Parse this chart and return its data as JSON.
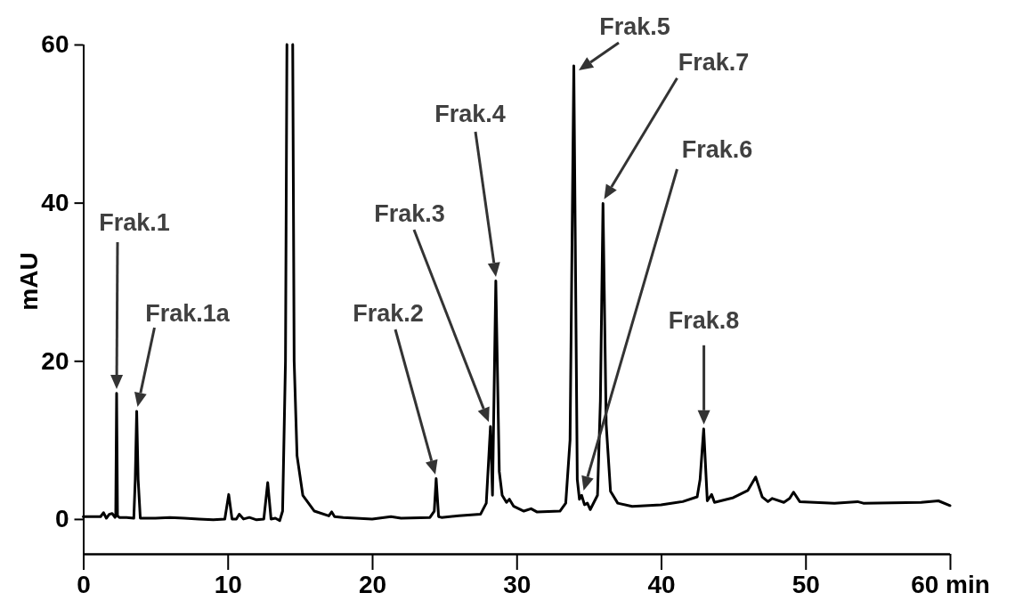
{
  "chart_data": {
    "type": "line",
    "xlabel": null,
    "ylabel": "mAU",
    "xlim": [
      0,
      60
    ],
    "ylim": [
      -4.4,
      60
    ],
    "xticks": [
      0,
      10,
      20,
      30,
      40,
      50,
      {
        "value": 60,
        "label": "60 min"
      }
    ],
    "yticks": [
      0,
      20,
      40,
      60
    ],
    "grid": false,
    "marker": "none",
    "line_style": "solid",
    "series": [
      {
        "color": "#000000",
        "x": [
          0,
          1.2,
          1.4,
          1.6,
          1.8,
          2.0,
          2.2,
          2.25,
          2.31,
          2.37,
          2.5,
          3.0,
          3.5,
          3.6,
          3.7,
          3.8,
          3.95,
          5,
          6,
          7,
          8,
          9,
          9.8,
          10.07,
          10.3,
          10.6,
          10.8,
          11.1,
          11.5,
          12,
          12.5,
          12.77,
          13.0,
          13.3,
          13.6,
          13.8,
          14.0,
          14.1,
          14.3,
          14.5,
          14.6,
          14.8,
          15.2,
          16,
          17,
          17.2,
          17.4,
          18,
          20,
          21.3,
          22,
          24,
          24.3,
          24.43,
          24.6,
          24.8,
          26,
          27.5,
          27.9,
          28.19,
          28.33,
          28.56,
          28.8,
          29.0,
          29.3,
          29.5,
          29.8,
          30.5,
          31,
          31.4,
          33,
          33.4,
          33.7,
          33.96,
          34.2,
          34.35,
          34.5,
          34.7,
          34.9,
          35.1,
          35.6,
          35.8,
          35.98,
          36.2,
          36.5,
          37,
          38,
          40,
          41.5,
          42.5,
          42.7,
          42.95,
          43.2,
          43.5,
          43.7,
          45,
          46,
          46.55,
          47,
          47.4,
          47.7,
          48.5,
          48.9,
          49.17,
          49.6,
          52,
          53.6,
          54,
          58,
          59.2,
          60
        ],
        "values": [
          0.3,
          0.3,
          0.8,
          0.1,
          0.6,
          0.7,
          0.2,
          0.4,
          15.9,
          0.4,
          0.2,
          0.2,
          0.1,
          5,
          13.6,
          5,
          0.1,
          0.1,
          0.2,
          0.1,
          0,
          -0.1,
          0,
          3.1,
          0,
          0,
          0.6,
          0,
          0.2,
          -0.1,
          0,
          4.6,
          0,
          0.1,
          -0.2,
          1,
          20,
          60,
          null,
          60,
          20,
          8,
          3,
          1,
          0.4,
          0.9,
          0.3,
          0.2,
          0,
          0.3,
          0.1,
          0.2,
          1,
          5.1,
          0.3,
          0.2,
          0.4,
          0.6,
          2,
          11.7,
          3.0,
          30.1,
          6,
          3,
          2.1,
          2.5,
          1.6,
          1.0,
          1.3,
          0.9,
          1.0,
          2,
          10,
          57.3,
          5,
          2.5,
          3.0,
          1.8,
          2.0,
          1.2,
          3,
          15,
          39.9,
          12,
          3.5,
          2.0,
          1.6,
          1.8,
          2.2,
          2.8,
          5,
          11.4,
          2.3,
          3.1,
          2.1,
          2.7,
          3.6,
          5.3,
          2.8,
          2.2,
          2.6,
          2.1,
          2.6,
          3.4,
          2.2,
          2.0,
          2.2,
          2.0,
          2.1,
          2.3,
          1.7
        ]
      }
    ],
    "annotations": [
      "Frak.1",
      "Frak.1a",
      "Frak.2",
      "Frak.3",
      "Frak.4",
      "Frak.5",
      "Frak.6",
      "Frak.7",
      "Frak.8"
    ]
  }
}
